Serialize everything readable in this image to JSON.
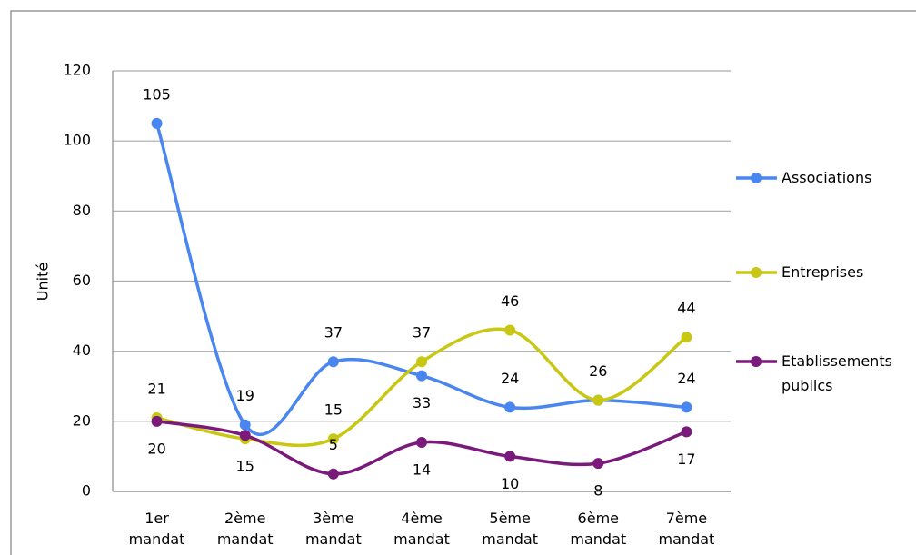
{
  "chart_data": {
    "type": "line",
    "y_label": "Unité",
    "categories": [
      "1er mandat",
      "2ème mandat",
      "3ème mandat",
      "4ème mandat",
      "5ème mandat",
      "6ème mandat",
      "7ème mandat"
    ],
    "series": [
      {
        "name": "Associations",
        "color": "#4a86f0",
        "values": [
          105,
          19,
          37,
          33,
          24,
          26,
          24
        ],
        "value_labels": [
          "105",
          "19",
          "37",
          "33",
          "24",
          null,
          "24"
        ]
      },
      {
        "name": "Entreprises",
        "color": "#c8c814",
        "values": [
          21,
          15,
          15,
          37,
          46,
          26,
          44
        ],
        "value_labels": [
          "21",
          "15",
          "15",
          "37",
          "46",
          "26",
          "44"
        ]
      },
      {
        "name": "Etablissements publics",
        "color": "#7a1a7a",
        "values": [
          20,
          16,
          5,
          14,
          10,
          8,
          17
        ],
        "value_labels": [
          "20",
          null,
          "5",
          "14",
          "10",
          "8",
          "17"
        ]
      }
    ],
    "ylim": [
      0,
      120
    ],
    "yticks": [
      0,
      20,
      40,
      60,
      80,
      100,
      120
    ],
    "grid": true,
    "legend": "right"
  }
}
